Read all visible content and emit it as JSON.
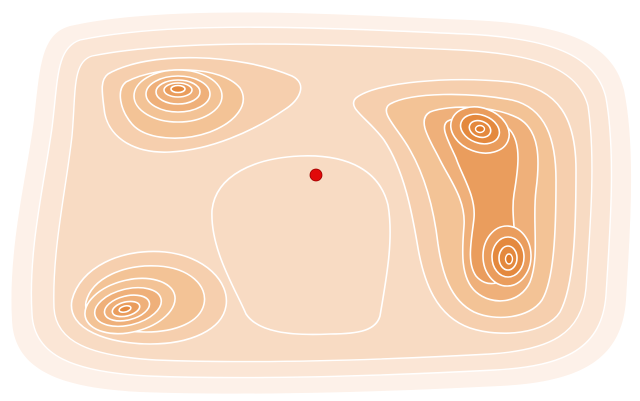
{
  "diagram": {
    "type": "contour-landscape",
    "palette": {
      "background": "#ffffff",
      "level_0": "#fdf1e9",
      "level_1": "#fbe6d6",
      "level_2": "#f8dbc3",
      "level_3": "#f6cfae",
      "level_4": "#f3c396",
      "level_5": "#efb07a",
      "level_6": "#ea9d5d",
      "level_7": "#e4893e",
      "contour_line": "#ffffff",
      "marker": "#e10a0a",
      "marker_stroke": "#9a0000"
    },
    "basins": [
      {
        "name": "upper-left-basin",
        "depth_levels": 7
      },
      {
        "name": "lower-left-basin",
        "depth_levels": 7
      },
      {
        "name": "right-upper-basin",
        "depth_levels": 7
      },
      {
        "name": "right-lower-basin",
        "depth_levels": 7
      }
    ],
    "marker": {
      "name": "current-position-marker",
      "icon": "red-dot"
    }
  }
}
